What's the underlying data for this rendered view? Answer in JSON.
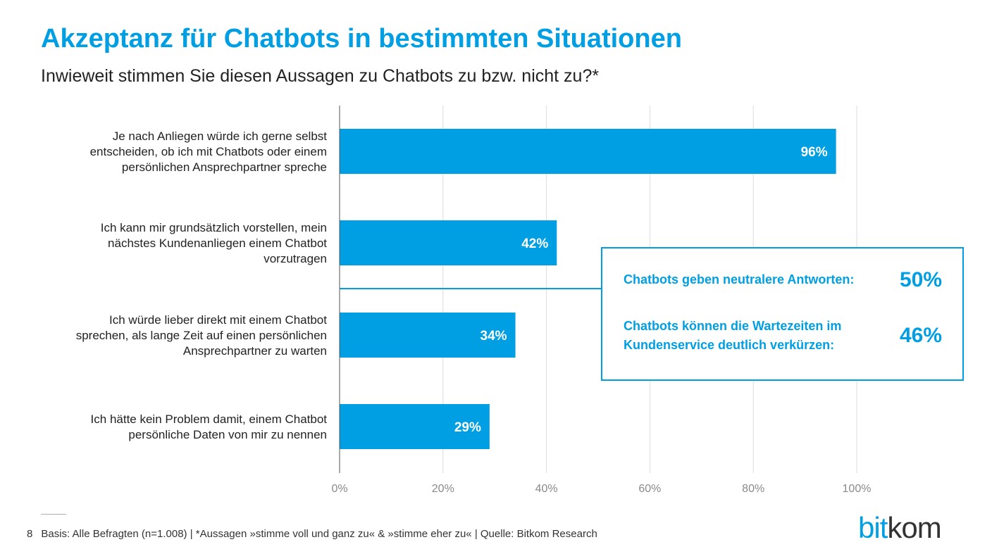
{
  "title": "Akzeptanz für Chatbots in bestimmten Situationen",
  "subtitle": "Inwieweit stimmen Sie diesen Aussagen zu Chatbots zu bzw. nicht zu?*",
  "colors": {
    "accent": "#009fe3",
    "text": "#222222",
    "grid": "#dcdcdc"
  },
  "chart_data": {
    "type": "bar",
    "orientation": "horizontal",
    "categories": [
      [
        "Je nach Anliegen würde ich gerne selbst",
        "entscheiden, ob ich mit Chatbots oder einem",
        "persönlichen Ansprechpartner spreche"
      ],
      [
        "Ich kann mir grundsätzlich vorstellen, mein",
        "nächstes Kundenanliegen einem Chatbot",
        "vorzutragen"
      ],
      [
        "Ich würde lieber direkt mit einem Chatbot",
        "sprechen, als lange Zeit auf einen persönlichen",
        "Ansprechpartner zu warten"
      ],
      [
        "Ich hätte kein Problem damit, einem Chatbot",
        "persönliche Daten von mir zu nennen"
      ]
    ],
    "values": [
      96,
      42,
      34,
      29
    ],
    "value_labels": [
      "96%",
      "42%",
      "34%",
      "29%"
    ],
    "xlim": [
      0,
      100
    ],
    "xticks": [
      "0%",
      "20%",
      "40%",
      "60%",
      "80%",
      "100%"
    ],
    "grid": true
  },
  "callout": {
    "items": [
      {
        "label_lines": [
          "Chatbots geben neutralere Antworten:"
        ],
        "value": "50%"
      },
      {
        "label_lines": [
          "Chatbots können die Wartezeiten im",
          "Kundenservice deutlich verkürzen:"
        ],
        "value": "46%"
      }
    ]
  },
  "footer": {
    "page": "8",
    "text": "Basis: Alle Befragten (n=1.008) | *Aussagen »stimme voll und ganz zu« & »stimme eher zu« | Quelle: Bitkom Research"
  },
  "logo": {
    "part1": "bit",
    "part2": "kom"
  }
}
